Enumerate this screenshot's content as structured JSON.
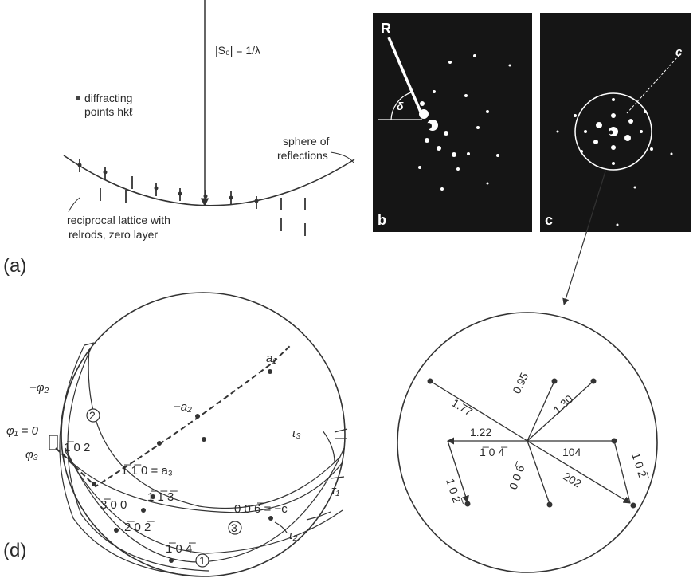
{
  "panel_a": {
    "letter": "(a)",
    "beam_label": "|S₀| = 1/λ",
    "points_label_1": "diffracting",
    "points_label_2": "points hkℓ",
    "sphere_label_1": "sphere of",
    "sphere_label_2": "reflections",
    "lattice_label_1": "reciprocal lattice with",
    "lattice_label_2": "relrods, zero layer"
  },
  "panel_b": {
    "letter": "b",
    "R_label": "R",
    "angle_label": "δ"
  },
  "panel_c": {
    "letter": "c",
    "axis_label": "c"
  },
  "panel_d": {
    "letter": "(d)",
    "phi2": "−φ₂",
    "phi1": "φ₁ = 0",
    "phi3": "φ₃",
    "a1": "a₁",
    "a2": "−a₂",
    "r102": "1̅ 0 2",
    "r110": "1̅ 1̅ 0 = a₃",
    "r113": "1̅ 1̅ 3̅",
    "r300": "3̅ 0 0",
    "r202": "2̅ 0 2̅",
    "r104": "1̅ 0 4̅",
    "r006": "0 0 6̅ = −c",
    "tau1": "τ₁",
    "tau2": "τ₂",
    "tau3": "τ₃",
    "circle1": "1",
    "circle2": "2",
    "circle3": "3"
  },
  "pattern": {
    "d177": "1.77",
    "d095": "0.95",
    "d130": "1.30",
    "d122": "1.22",
    "m104": "1̅ 0 4̅",
    "p104": "104",
    "m102": "1 0 2̅",
    "p102": "1 0 2̅",
    "d006": "0 0 6̅",
    "d202": "202"
  }
}
